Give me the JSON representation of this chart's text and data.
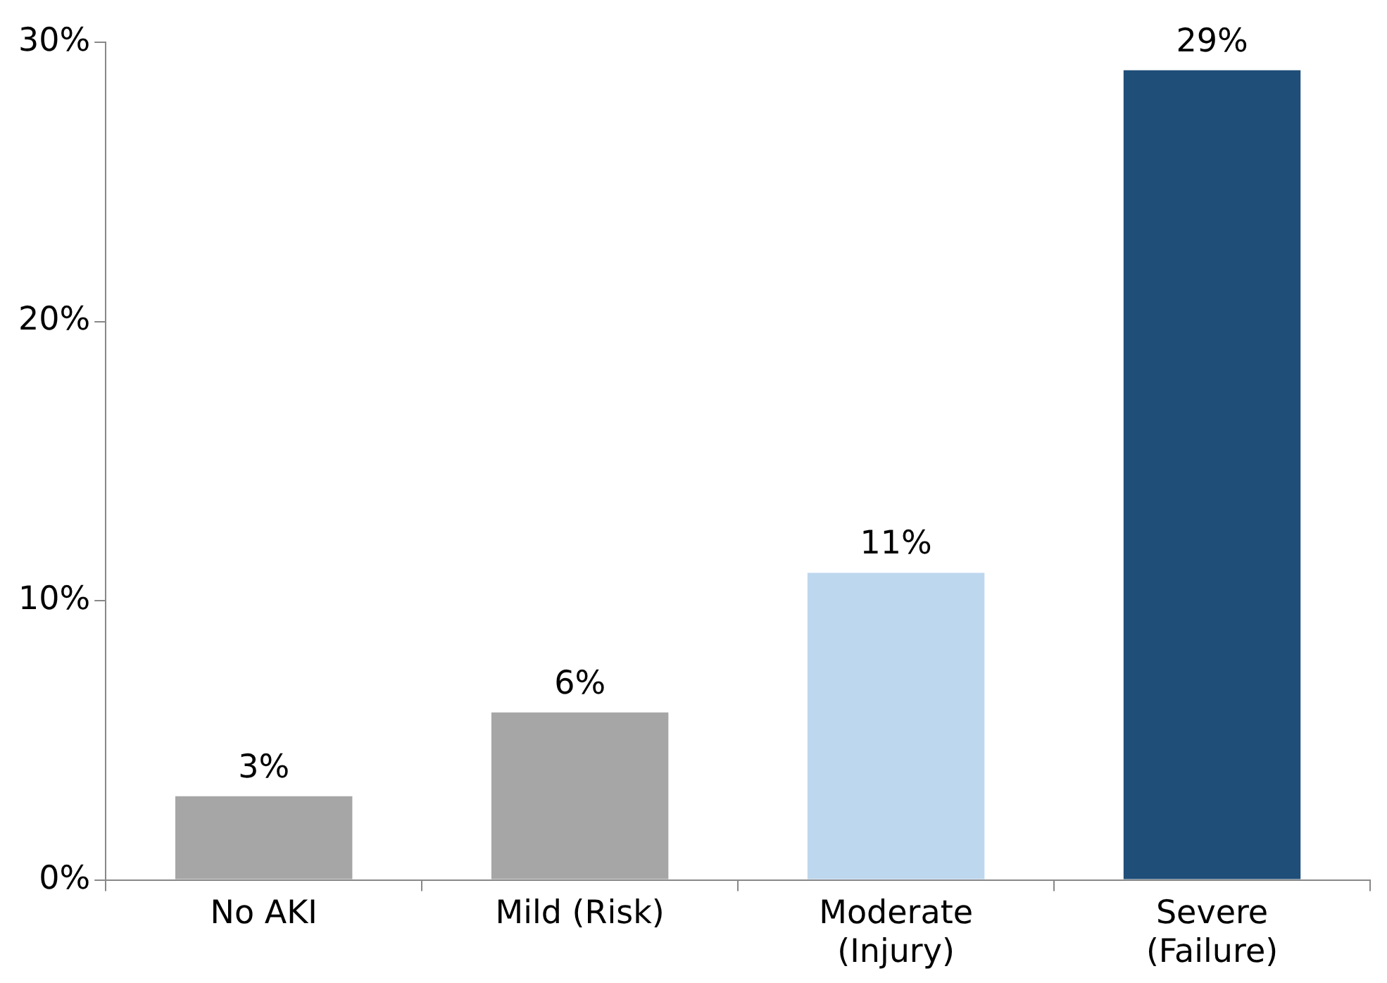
{
  "chart_data": {
    "type": "bar",
    "categories": [
      "No AKI",
      "Mild (Risk)",
      "Moderate\n(Injury)",
      "Severe\n(Failure)"
    ],
    "values": [
      3,
      6,
      11,
      29
    ],
    "colors": [
      "#a6a6a6",
      "#a6a6a6",
      "#bdd7ee",
      "#1f4e79"
    ],
    "ylim": [
      0,
      30
    ],
    "yticks": [
      {
        "value": 0,
        "label": "0%"
      },
      {
        "value": 10,
        "label": "10%"
      },
      {
        "value": 20,
        "label": "20%"
      },
      {
        "value": 30,
        "label": "30%"
      }
    ],
    "value_labels": [
      "3%",
      "6%",
      "11%",
      "29%"
    ]
  }
}
